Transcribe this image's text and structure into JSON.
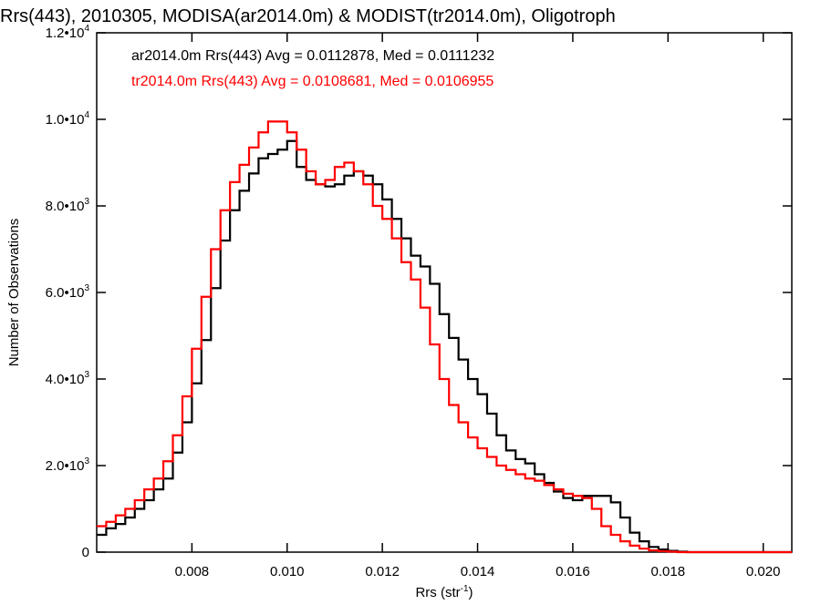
{
  "chart_data": {
    "type": "line",
    "title": "Rrs(443), 2010305, MODISA(ar2014.0m) & MODIST(tr2014.0m), Oligotroph",
    "xlabel_main": "Rrs (str",
    "xlabel_sup": "-1",
    "xlabel_tail": ")",
    "ylabel": "Number of Observations",
    "xlim": [
      0.006,
      0.0206
    ],
    "ylim": [
      0,
      12000
    ],
    "grid": false,
    "xticks": [
      {
        "value": 0.008,
        "label": "0.008"
      },
      {
        "value": 0.01,
        "label": "0.010"
      },
      {
        "value": 0.012,
        "label": "0.012"
      },
      {
        "value": 0.014,
        "label": "0.014"
      },
      {
        "value": 0.016,
        "label": "0.016"
      },
      {
        "value": 0.018,
        "label": "0.018"
      },
      {
        "value": 0.02,
        "label": "0.020"
      }
    ],
    "yticks": [
      {
        "value": 0,
        "base": "0",
        "exp": ""
      },
      {
        "value": 2000,
        "base": "2.0•10",
        "exp": "3"
      },
      {
        "value": 4000,
        "base": "4.0•10",
        "exp": "3"
      },
      {
        "value": 6000,
        "base": "6.0•10",
        "exp": "3"
      },
      {
        "value": 8000,
        "base": "8.0•10",
        "exp": "3"
      },
      {
        "value": 10000,
        "base": "1.0•10",
        "exp": "4"
      },
      {
        "value": 12000,
        "base": "1.2•10",
        "exp": "4"
      }
    ],
    "annotations": [
      {
        "text": "ar2014.0m Rrs(443) Avg = 0.0112878, Med = 0.0111232",
        "color": "#000000"
      },
      {
        "text": "tr2014.0m Rrs(443) Avg = 0.0108681, Med = 0.0106955",
        "color": "#ff0000"
      }
    ],
    "series": [
      {
        "color": "#000000",
        "x": [
          0.006,
          0.0062,
          0.0064,
          0.0066,
          0.0068,
          0.007,
          0.0072,
          0.0074,
          0.0076,
          0.0078,
          0.008,
          0.0082,
          0.0084,
          0.0086,
          0.0088,
          0.009,
          0.0092,
          0.0094,
          0.0096,
          0.0098,
          0.01,
          0.0102,
          0.0104,
          0.0106,
          0.0108,
          0.011,
          0.0112,
          0.0114,
          0.0116,
          0.0118,
          0.012,
          0.0122,
          0.0124,
          0.0126,
          0.0128,
          0.013,
          0.0132,
          0.0134,
          0.0136,
          0.0138,
          0.014,
          0.0142,
          0.0144,
          0.0146,
          0.0148,
          0.015,
          0.0152,
          0.0154,
          0.0156,
          0.0158,
          0.016,
          0.0162,
          0.0164,
          0.0166,
          0.0168,
          0.017,
          0.0172,
          0.0174,
          0.0176,
          0.0178,
          0.018,
          0.0182,
          0.0184,
          0.0186,
          0.0188,
          0.019,
          0.0192,
          0.0194,
          0.0196,
          0.0198,
          0.02,
          0.0202,
          0.0204,
          0.0206
        ],
        "y": [
          400,
          550,
          650,
          800,
          1000,
          1200,
          1450,
          1700,
          2300,
          3000,
          3900,
          4900,
          6100,
          7200,
          7900,
          8350,
          8750,
          9100,
          9200,
          9300,
          9500,
          8900,
          8600,
          8500,
          8450,
          8500,
          8700,
          8800,
          8700,
          8500,
          8150,
          7700,
          7250,
          6850,
          6600,
          6200,
          5500,
          4950,
          4450,
          4000,
          3650,
          3200,
          2700,
          2350,
          2150,
          2050,
          1800,
          1600,
          1400,
          1250,
          1200,
          1300,
          1300,
          1300,
          1150,
          800,
          450,
          250,
          120,
          60,
          30,
          10,
          0,
          0,
          0,
          0,
          0,
          0,
          0,
          0,
          0,
          0,
          0,
          0
        ]
      },
      {
        "color": "#ff0000",
        "x": [
          0.006,
          0.0062,
          0.0064,
          0.0066,
          0.0068,
          0.007,
          0.0072,
          0.0074,
          0.0076,
          0.0078,
          0.008,
          0.0082,
          0.0084,
          0.0086,
          0.0088,
          0.009,
          0.0092,
          0.0094,
          0.0096,
          0.0098,
          0.01,
          0.0102,
          0.0104,
          0.0106,
          0.0108,
          0.011,
          0.0112,
          0.0114,
          0.0116,
          0.0118,
          0.012,
          0.0122,
          0.0124,
          0.0126,
          0.0128,
          0.013,
          0.0132,
          0.0134,
          0.0136,
          0.0138,
          0.014,
          0.0142,
          0.0144,
          0.0146,
          0.0148,
          0.015,
          0.0152,
          0.0154,
          0.0156,
          0.0158,
          0.016,
          0.0162,
          0.0164,
          0.0166,
          0.0168,
          0.017,
          0.0172,
          0.0174,
          0.0176,
          0.0178,
          0.018,
          0.0182,
          0.0184,
          0.0186,
          0.0188,
          0.019,
          0.0192,
          0.0194,
          0.0196,
          0.0198,
          0.02,
          0.0202,
          0.0204,
          0.0206
        ],
        "y": [
          600,
          700,
          850,
          1000,
          1200,
          1450,
          1700,
          2100,
          2700,
          3600,
          4700,
          5900,
          7000,
          7900,
          8550,
          8950,
          9350,
          9700,
          9950,
          9950,
          9700,
          9300,
          8800,
          8500,
          8600,
          8900,
          9000,
          8800,
          8500,
          8000,
          7700,
          7250,
          6700,
          6300,
          5650,
          4800,
          4000,
          3400,
          3000,
          2650,
          2400,
          2200,
          2000,
          1900,
          1800,
          1700,
          1650,
          1550,
          1450,
          1350,
          1300,
          1250,
          1000,
          600,
          400,
          250,
          150,
          80,
          40,
          20,
          10,
          0,
          0,
          0,
          0,
          0,
          0,
          0,
          0,
          0,
          0,
          0,
          0,
          0
        ]
      }
    ]
  }
}
